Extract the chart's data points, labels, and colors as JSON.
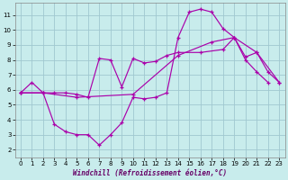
{
  "xlabel": "Windchill (Refroidissement éolien,°C)",
  "bg_color": "#c8ecec",
  "grid_color": "#a0c8d0",
  "line_color": "#aa00aa",
  "xlim": [
    -0.5,
    23.5
  ],
  "ylim": [
    1.5,
    11.8
  ],
  "xticks": [
    0,
    1,
    2,
    3,
    4,
    5,
    6,
    7,
    8,
    9,
    10,
    11,
    12,
    13,
    14,
    15,
    16,
    17,
    18,
    19,
    20,
    21,
    22,
    23
  ],
  "yticks": [
    2,
    3,
    4,
    5,
    6,
    7,
    8,
    9,
    10,
    11
  ],
  "line1_x": [
    0,
    1,
    2,
    3,
    4,
    5,
    6,
    7,
    8,
    9,
    10,
    11,
    12,
    13,
    14,
    15,
    16,
    17,
    18,
    19,
    20,
    21,
    22
  ],
  "line1_y": [
    5.8,
    6.5,
    5.8,
    3.7,
    3.2,
    3.0,
    3.0,
    2.3,
    3.0,
    3.8,
    5.5,
    5.4,
    5.5,
    5.8,
    9.5,
    11.2,
    11.4,
    11.2,
    10.1,
    9.5,
    8.0,
    7.2,
    6.5
  ],
  "line2_x": [
    0,
    2,
    3,
    4,
    5,
    6,
    7,
    8,
    9,
    10,
    11,
    12,
    13,
    14,
    16,
    18,
    19,
    20,
    21,
    22,
    23
  ],
  "line2_y": [
    5.8,
    5.8,
    5.8,
    5.8,
    5.7,
    5.5,
    8.1,
    8.0,
    6.2,
    8.1,
    7.8,
    7.9,
    8.3,
    8.5,
    8.5,
    8.7,
    9.5,
    8.2,
    8.5,
    7.2,
    6.5
  ],
  "line3_x": [
    0,
    2,
    5,
    10,
    14,
    17,
    19,
    21,
    23
  ],
  "line3_y": [
    5.8,
    5.8,
    5.5,
    5.7,
    8.3,
    9.2,
    9.5,
    8.5,
    6.5
  ]
}
